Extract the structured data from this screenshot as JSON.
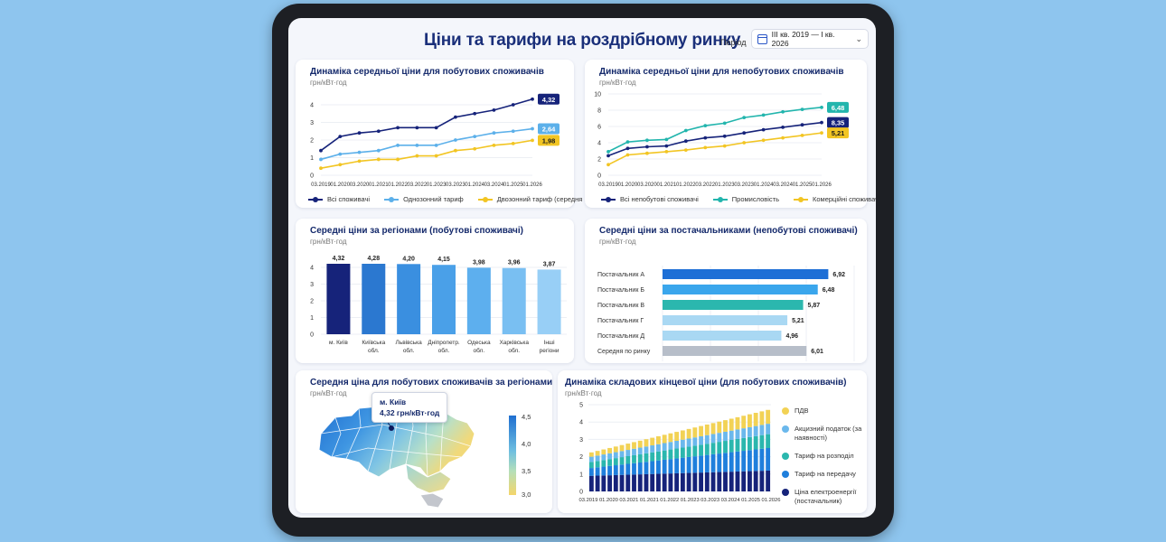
{
  "header": {
    "title": "Ціни та тарифи на роздрібному ринку",
    "period_label": "Період",
    "period_value": "III кв. 2019 — I кв. 2026"
  },
  "x_ticks": [
    "03.2019",
    "01.2020",
    "03.2020",
    "01.2021",
    "01.2022",
    "03.2022",
    "01.2023",
    "03.2023",
    "01.2024",
    "03.2024",
    "01.2025",
    "01.2026"
  ],
  "household_chart": {
    "title": "Динаміка середньої ціни для побутових споживачів",
    "unit": "грн/кВт·год",
    "legend": [
      "Всі споживачі",
      "Однозонний тариф",
      "Двозонний тариф (середня ціна)"
    ],
    "end_labels": [
      "4,32",
      "2,64",
      "1,98"
    ],
    "colors": [
      "#16237a",
      "#5cb0ea",
      "#f2c523"
    ]
  },
  "nonhousehold_chart": {
    "title": "Динаміка середньої ціни для непобутових споживачів",
    "unit": "грн/кВт·год",
    "legend": [
      "Всі непобутові споживачі",
      "Промисловість",
      "Комерційні споживачі"
    ],
    "end_labels": [
      "8,35",
      "6,48",
      "5,21"
    ],
    "colors": [
      "#16237a",
      "#22b5ad",
      "#f2c523"
    ]
  },
  "regions_bar": {
    "title": "Середні ціни за регіонами (побутові споживачі)",
    "unit": "грн/кВт·год",
    "labels": [
      "4,32",
      "4,28",
      "4,20",
      "4,15",
      "3,98",
      "3,96",
      "3,87"
    ],
    "categories": [
      [
        "м. Київ"
      ],
      [
        "Київська",
        "обл."
      ],
      [
        "Львівська",
        "обл."
      ],
      [
        "Дніпропетр.",
        "обл."
      ],
      [
        "Одеська",
        "обл."
      ],
      [
        "Харківська",
        "обл."
      ],
      [
        "Інші",
        "регіони"
      ]
    ]
  },
  "suppliers_bar": {
    "title": "Середні ціни за постачальниками (непобутові споживачі)",
    "unit": "грн/кВт·год",
    "categories": [
      "Постачальник А",
      "Постачальник Б",
      "Постачальник В",
      "Постачальник Г",
      "Постачальник Д",
      "Середня по ринку"
    ],
    "labels": [
      "6,92",
      "6,48",
      "5,87",
      "5,21",
      "4,96",
      "6,01"
    ]
  },
  "map_card": {
    "title": "Середня ціна для побутових споживачів за регіонами",
    "unit": "грн/кВт·год",
    "tooltip_city": "м. Київ",
    "tooltip_value": "4,32 грн/кВт·год",
    "scale_labels": [
      "4,5",
      "4,0",
      "3,5",
      "3,0"
    ]
  },
  "components_chart": {
    "title": "Динаміка складових кінцевої ціни (для побутових споживачів)",
    "unit": "грн/кВт·год",
    "legend": [
      {
        "label": "ПДВ",
        "color": "#f2d255"
      },
      {
        "label": "Акцизний податок (за наявності)",
        "color": "#6bb8ec"
      },
      {
        "label": "Тариф на розподіл",
        "color": "#2bb7ae"
      },
      {
        "label": "Тариф на передачу",
        "color": "#1f7fdc"
      },
      {
        "label": "Ціна електроенергії (постачальник)",
        "color": "#16237a"
      }
    ],
    "x_ticks": [
      "03.2019",
      "01.2020",
      "03.2021",
      "01.2021",
      "01.2022",
      "01.2023",
      "03.2023",
      "03.2024",
      "01.2025",
      "01.2026"
    ]
  },
  "chart_data": [
    {
      "type": "line",
      "title": "Динаміка середньої ціни для побутових споживачів",
      "ylabel": "грн/кВт·год",
      "ylim": [
        0,
        4
      ],
      "yticks": [
        0,
        1,
        2,
        3,
        4
      ],
      "x": [
        "03.2019",
        "01.2020",
        "03.2020",
        "01.2021",
        "01.2022",
        "03.2022",
        "01.2023",
        "03.2023",
        "01.2024",
        "03.2024",
        "01.2025",
        "01.2026"
      ],
      "series": [
        {
          "name": "Всі споживачі",
          "values": [
            1.4,
            2.2,
            2.4,
            2.5,
            2.7,
            2.7,
            2.7,
            3.3,
            3.5,
            3.7,
            4.0,
            4.32
          ]
        },
        {
          "name": "Однозонний тариф",
          "values": [
            0.9,
            1.2,
            1.3,
            1.4,
            1.7,
            1.7,
            1.7,
            2.0,
            2.2,
            2.4,
            2.5,
            2.64
          ]
        },
        {
          "name": "Двозонний тариф (середня ціна)",
          "values": [
            0.4,
            0.6,
            0.8,
            0.9,
            0.9,
            1.1,
            1.1,
            1.4,
            1.5,
            1.7,
            1.8,
            1.98
          ]
        }
      ],
      "legend": "bottom"
    },
    {
      "type": "line",
      "title": "Динаміка середньої ціни для непобутових споживачів",
      "ylabel": "грн/кВт·год",
      "ylim": [
        0,
        10
      ],
      "yticks": [
        0,
        2,
        4,
        6,
        8,
        10
      ],
      "x": [
        "03.2019",
        "01.2020",
        "03.2020",
        "01.2021",
        "01.2022",
        "03.2022",
        "01.2023",
        "03.2023",
        "01.2024",
        "03.2024",
        "01.2025",
        "01.2026"
      ],
      "series": [
        {
          "name": "Всі непобутові споживачі",
          "values": [
            2.4,
            3.3,
            3.5,
            3.6,
            4.2,
            4.6,
            4.8,
            5.2,
            5.6,
            5.9,
            6.2,
            6.48
          ]
        },
        {
          "name": "Промисловість",
          "values": [
            2.9,
            4.1,
            4.3,
            4.4,
            5.5,
            6.1,
            6.4,
            7.1,
            7.4,
            7.8,
            8.1,
            8.35
          ]
        },
        {
          "name": "Комерційні споживачі",
          "values": [
            1.3,
            2.5,
            2.7,
            2.9,
            3.1,
            3.4,
            3.6,
            4.0,
            4.3,
            4.6,
            4.9,
            5.21
          ]
        }
      ],
      "legend": "bottom"
    },
    {
      "type": "bar",
      "title": "Середні ціни за регіонами (побутові споживачі)",
      "ylabel": "грн/кВт·год",
      "categories": [
        "м. Київ",
        "Київська обл.",
        "Львівська обл.",
        "Дніпропетр. обл.",
        "Одеська обл.",
        "Харківська обл.",
        "Інші регіони"
      ],
      "values": [
        4.32,
        4.28,
        4.2,
        4.15,
        3.98,
        3.96,
        3.87
      ],
      "ylim": [
        0,
        4
      ],
      "yticks": [
        0,
        1,
        2,
        3,
        4
      ],
      "colors": [
        "#16237a",
        "#2b78d0",
        "#3a8fe0",
        "#4aa0e8",
        "#5dafee",
        "#79bff2",
        "#98cff6"
      ]
    },
    {
      "type": "bar",
      "orientation": "horizontal",
      "title": "Середні ціни за постачальниками (непобутові споживачі)",
      "ylabel": "грн/кВт·год",
      "categories": [
        "Постачальник А",
        "Постачальник Б",
        "Постачальник В",
        "Постачальник Г",
        "Постачальник Д",
        "Середня по ринку"
      ],
      "values": [
        6.92,
        6.48,
        5.87,
        5.21,
        4.96,
        6.01
      ],
      "xlim": [
        0,
        8
      ],
      "xticks": [
        0,
        2,
        4,
        6,
        8
      ],
      "colors": [
        "#1e6fd6",
        "#3aa6ec",
        "#2bb7ae",
        "#a9d8f3",
        "#a9d8f3",
        "#b7bec9"
      ]
    },
    {
      "type": "bar",
      "stacked": true,
      "title": "Динаміка складових кінцевої ціни (для побутових споживачів)",
      "ylabel": "грн/кВт·год",
      "ylim": [
        0,
        5
      ],
      "yticks": [
        0,
        1,
        2,
        3,
        4,
        5
      ],
      "x_start": "03.2019",
      "x_end": "01.2026",
      "series": [
        {
          "name": "Ціна електроенергії (постачальник)",
          "start": 0.9,
          "end": 1.2
        },
        {
          "name": "Тариф на передачу",
          "start": 0.45,
          "end": 1.3
        },
        {
          "name": "Тариф на розподіл",
          "start": 0.35,
          "end": 0.8
        },
        {
          "name": "Акцизний податок (за наявності)",
          "start": 0.3,
          "end": 0.6
        },
        {
          "name": "ПДВ",
          "start": 0.25,
          "end": 0.8
        }
      ]
    }
  ]
}
